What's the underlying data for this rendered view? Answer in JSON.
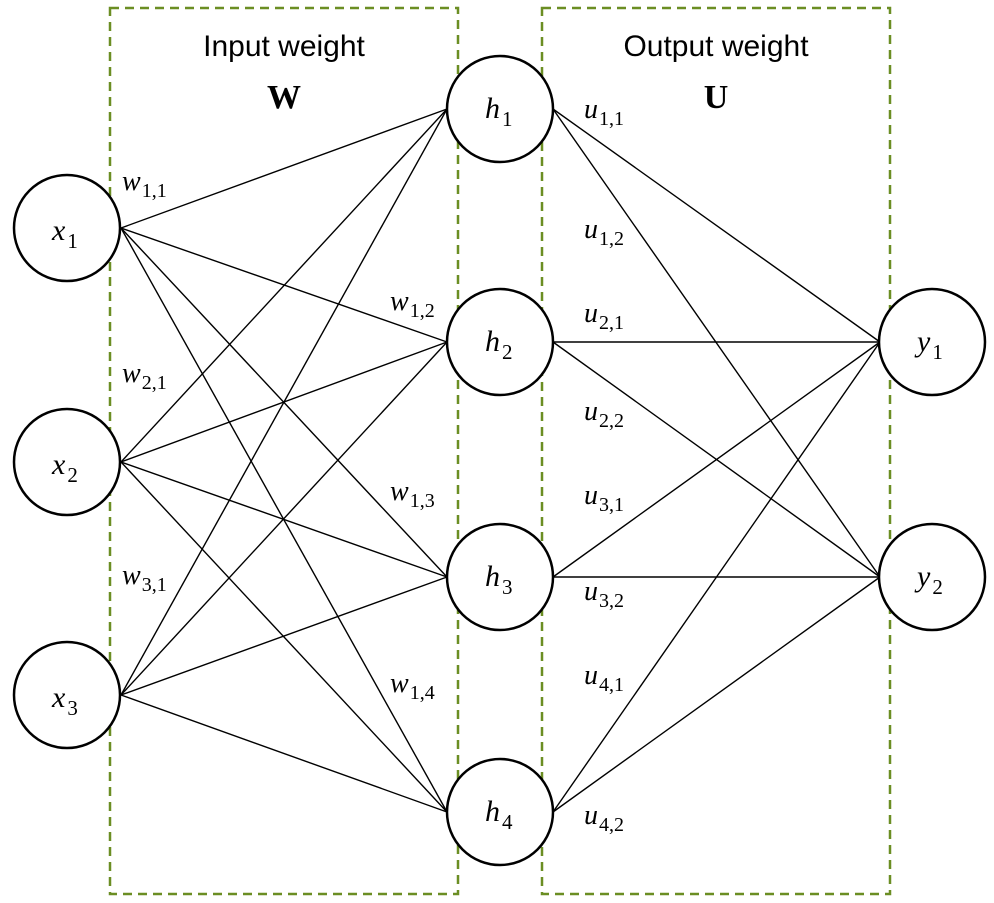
{
  "diagram": {
    "input_box_title": "Input weight",
    "input_matrix": "W",
    "output_box_title": "Output weight",
    "output_matrix": "U",
    "colors": {
      "box_border": "#6b8e23",
      "line": "#000000",
      "node_fill": "#ffffff"
    }
  },
  "nodes": {
    "inputs": [
      {
        "var": "x",
        "sub": "1"
      },
      {
        "var": "x",
        "sub": "2"
      },
      {
        "var": "x",
        "sub": "3"
      }
    ],
    "hidden": [
      {
        "var": "h",
        "sub": "1"
      },
      {
        "var": "h",
        "sub": "2"
      },
      {
        "var": "h",
        "sub": "3"
      },
      {
        "var": "h",
        "sub": "4"
      }
    ],
    "outputs": [
      {
        "var": "y",
        "sub": "1"
      },
      {
        "var": "y",
        "sub": "2"
      }
    ]
  },
  "weights": {
    "input": [
      {
        "var": "w",
        "sub": "1,1"
      },
      {
        "var": "w",
        "sub": "1,2"
      },
      {
        "var": "w",
        "sub": "2,1"
      },
      {
        "var": "w",
        "sub": "1,3"
      },
      {
        "var": "w",
        "sub": "3,1"
      },
      {
        "var": "w",
        "sub": "1,4"
      }
    ],
    "output": [
      {
        "var": "u",
        "sub": "1,1"
      },
      {
        "var": "u",
        "sub": "1,2"
      },
      {
        "var": "u",
        "sub": "2,1"
      },
      {
        "var": "u",
        "sub": "2,2"
      },
      {
        "var": "u",
        "sub": "3,1"
      },
      {
        "var": "u",
        "sub": "3,2"
      },
      {
        "var": "u",
        "sub": "4,1"
      },
      {
        "var": "u",
        "sub": "4,2"
      }
    ]
  }
}
